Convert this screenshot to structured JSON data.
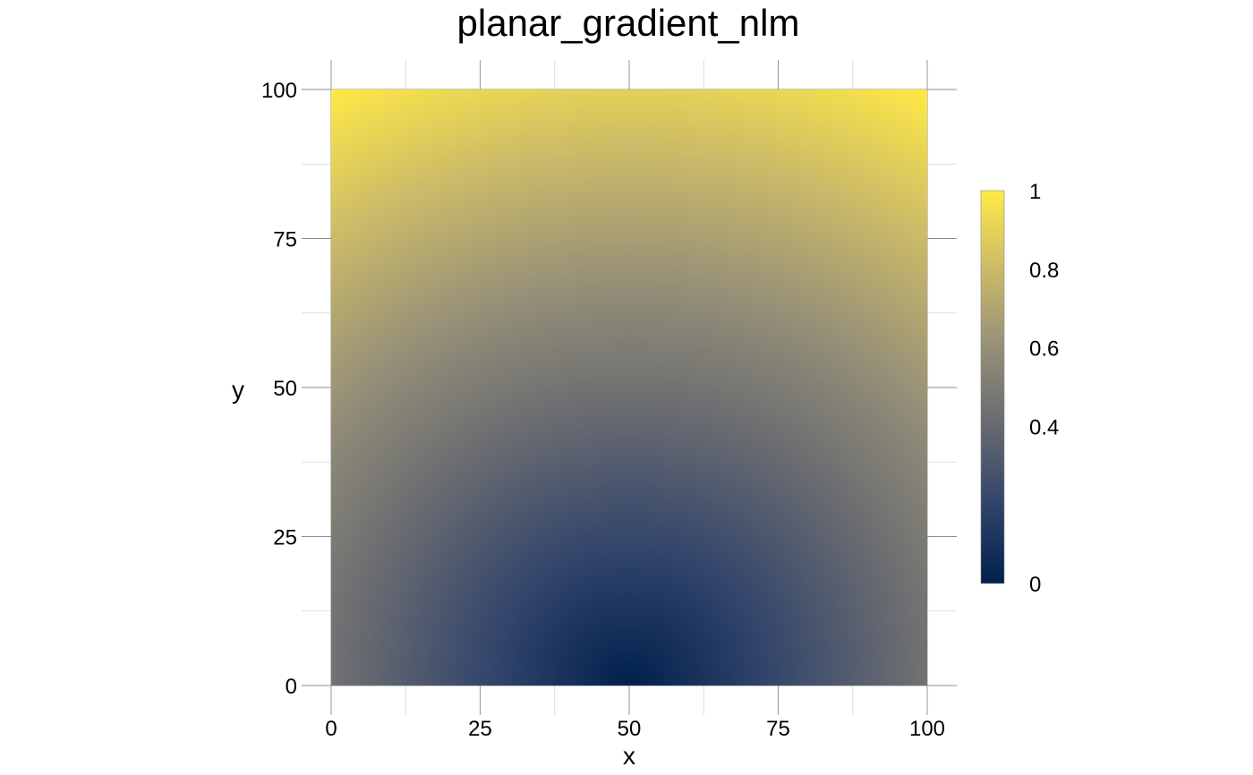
{
  "chart_data": {
    "type": "heatmap",
    "title": "planar_gradient_nlm",
    "xlabel": "x",
    "ylabel": "y",
    "xlim": [
      0,
      100
    ],
    "ylim": [
      0,
      100
    ],
    "x_ticks": [
      0,
      25,
      50,
      75,
      100
    ],
    "y_ticks": [
      0,
      25,
      50,
      75,
      100
    ],
    "x_tick_labels": [
      "0",
      "25",
      "50",
      "75",
      "100"
    ],
    "y_tick_labels": [
      "0",
      "25",
      "50",
      "75",
      "100"
    ],
    "grid": true,
    "legend_position": "right",
    "colorbar": {
      "min": 0,
      "max": 1,
      "ticks": [
        0,
        0.4,
        0.6,
        0.8,
        1
      ],
      "tick_labels": [
        "0",
        "0.4",
        "0.6",
        "0.8",
        "1"
      ],
      "palette": "cividis",
      "colors": [
        "#00204D",
        "#31446B",
        "#666970",
        "#958F78",
        "#CBBA69",
        "#FFEA46"
      ]
    },
    "surface": {
      "low_point": {
        "x": 50,
        "y": 0,
        "value": 0
      },
      "corner_values": {
        "top_left": 1,
        "top_right": 1,
        "bottom_left": 0.45,
        "bottom_right": 0.45
      }
    }
  }
}
